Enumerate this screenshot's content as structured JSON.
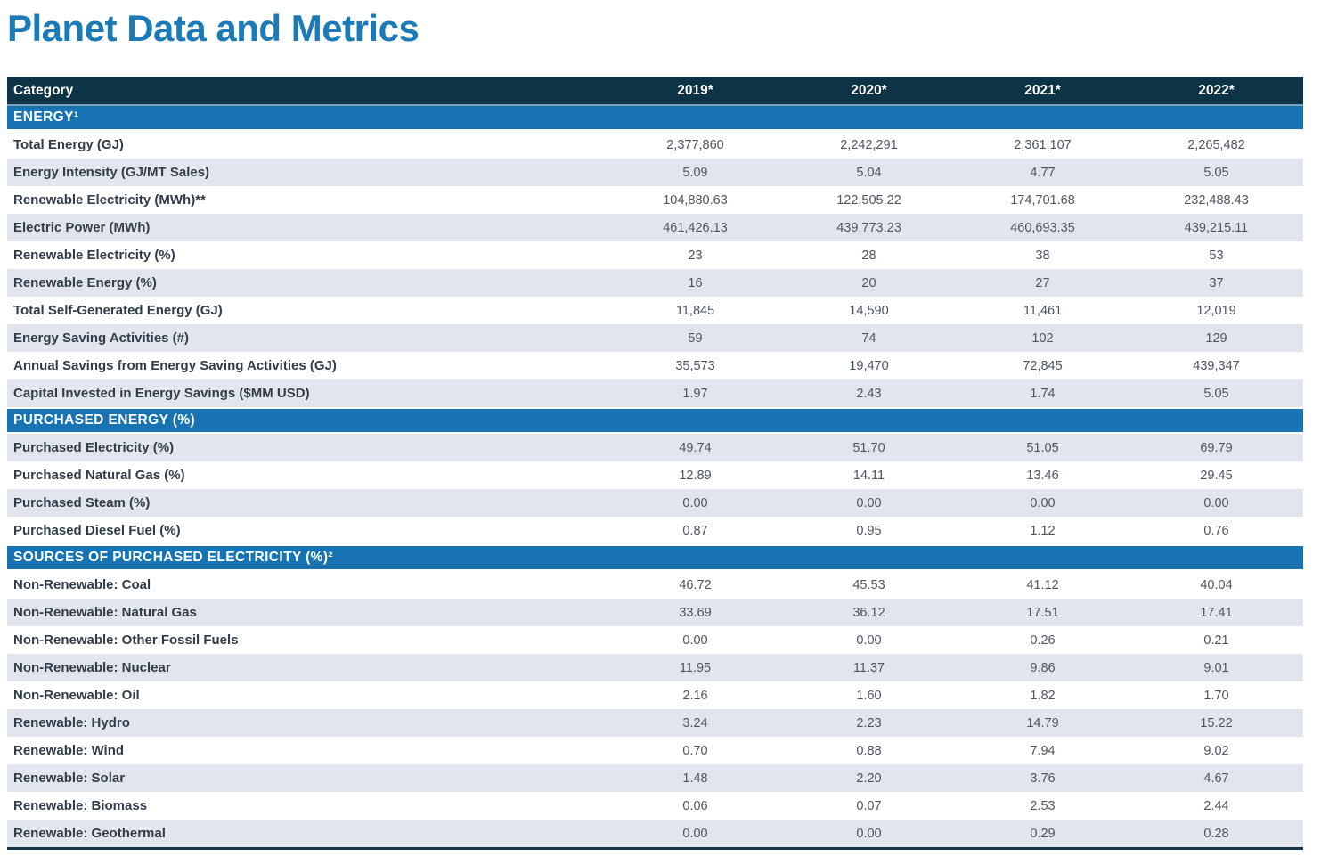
{
  "page": {
    "title": "Planet Data and Metrics"
  },
  "colors": {
    "title_blue": "#1b7ab8",
    "header_navy": "#0c3346",
    "section_blue": "#1773b2",
    "row_stripe": "#e2e5ee",
    "table_bottom_border": "#16384a",
    "label_text": "#313d49",
    "value_text": "#4d5560"
  },
  "table": {
    "columns": [
      "Category",
      "2019*",
      "2020*",
      "2021*",
      "2022*"
    ],
    "sections": [
      {
        "header": "ENERGY¹",
        "rows": [
          {
            "label": "Total Energy (GJ)",
            "values": [
              "2,377,860",
              "2,242,291",
              "2,361,107",
              "2,265,482"
            ]
          },
          {
            "label": "Energy Intensity (GJ/MT Sales)",
            "values": [
              "5.09",
              "5.04",
              "4.77",
              "5.05"
            ]
          },
          {
            "label": "Renewable Electricity (MWh)**",
            "values": [
              "104,880.63",
              "122,505.22",
              "174,701.68",
              "232,488.43"
            ]
          },
          {
            "label": "Electric Power (MWh)",
            "values": [
              "461,426.13",
              "439,773.23",
              "460,693.35",
              "439,215.11"
            ]
          },
          {
            "label": "Renewable Electricity (%)",
            "values": [
              "23",
              "28",
              "38",
              "53"
            ]
          },
          {
            "label": "Renewable Energy (%)",
            "values": [
              "16",
              "20",
              "27",
              "37"
            ]
          },
          {
            "label": "Total Self-Generated Energy (GJ)",
            "values": [
              "11,845",
              "14,590",
              "11,461",
              "12,019"
            ]
          },
          {
            "label": "Energy Saving Activities (#)",
            "values": [
              "59",
              "74",
              "102",
              "129"
            ]
          },
          {
            "label": "Annual Savings from Energy Saving Activities (GJ)",
            "values": [
              "35,573",
              "19,470",
              "72,845",
              "439,347"
            ]
          },
          {
            "label": "Capital Invested in Energy Savings ($MM USD)",
            "values": [
              "1.97",
              "2.43",
              "1.74",
              "5.05"
            ]
          }
        ]
      },
      {
        "header": "PURCHASED ENERGY (%)",
        "rows": [
          {
            "label": "Purchased Electricity (%)",
            "values": [
              "49.74",
              "51.70",
              "51.05",
              "69.79"
            ]
          },
          {
            "label": "Purchased Natural Gas (%)",
            "values": [
              "12.89",
              "14.11",
              "13.46",
              "29.45"
            ]
          },
          {
            "label": "Purchased Steam (%)",
            "values": [
              "0.00",
              "0.00",
              "0.00",
              "0.00"
            ]
          },
          {
            "label": "Purchased Diesel Fuel (%)",
            "values": [
              "0.87",
              "0.95",
              "1.12",
              "0.76"
            ]
          }
        ]
      },
      {
        "header": "SOURCES OF PURCHASED ELECTRICITY (%)²",
        "rows": [
          {
            "label": "Non-Renewable: Coal",
            "values": [
              "46.72",
              "45.53",
              "41.12",
              "40.04"
            ]
          },
          {
            "label": "Non-Renewable: Natural Gas",
            "values": [
              "33.69",
              "36.12",
              "17.51",
              "17.41"
            ]
          },
          {
            "label": "Non-Renewable: Other Fossil Fuels",
            "values": [
              "0.00",
              "0.00",
              "0.26",
              "0.21"
            ]
          },
          {
            "label": "Non-Renewable: Nuclear",
            "values": [
              "11.95",
              "11.37",
              "9.86",
              "9.01"
            ]
          },
          {
            "label": "Non-Renewable: Oil",
            "values": [
              "2.16",
              "1.60",
              "1.82",
              "1.70"
            ]
          },
          {
            "label": "Renewable: Hydro",
            "values": [
              "3.24",
              "2.23",
              "14.79",
              "15.22"
            ]
          },
          {
            "label": "Renewable: Wind",
            "values": [
              "0.70",
              "0.88",
              "7.94",
              "9.02"
            ]
          },
          {
            "label": "Renewable: Solar",
            "values": [
              "1.48",
              "2.20",
              "3.76",
              "4.67"
            ]
          },
          {
            "label": "Renewable: Biomass",
            "values": [
              "0.06",
              "0.07",
              "2.53",
              "2.44"
            ]
          },
          {
            "label": "Renewable: Geothermal",
            "values": [
              "0.00",
              "0.00",
              "0.29",
              "0.28"
            ]
          }
        ]
      }
    ]
  }
}
